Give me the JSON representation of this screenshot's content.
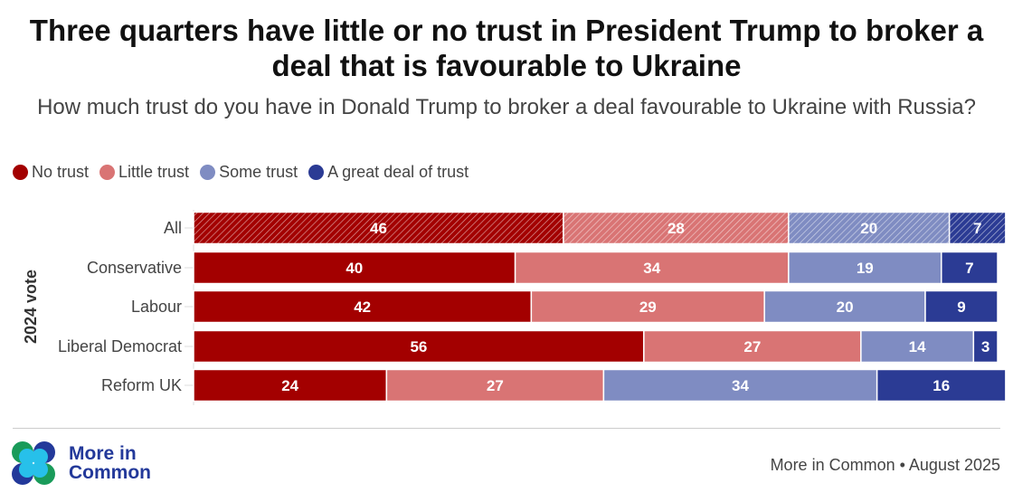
{
  "title": "Three quarters have little or no trust in President Trump to broker a deal that is favourable to Ukraine",
  "subtitle": "How much trust do you have in Donald Trump to broker a deal favourable to Ukraine with Russia?",
  "logo": {
    "line1": "More in",
    "line2": "Common"
  },
  "source": "More in Common • August 2025",
  "chart_data": {
    "type": "bar",
    "orientation": "horizontal-stacked",
    "ylabel": "2024 vote",
    "categories": [
      "All",
      "Conservative",
      "Labour",
      "Liberal Democrat",
      "Reform UK"
    ],
    "xlim": [
      0,
      100
    ],
    "grid": false,
    "legend_position": "top-left",
    "series": [
      {
        "name": "No trust",
        "color": "#a30000",
        "values": [
          46,
          40,
          42,
          56,
          24
        ]
      },
      {
        "name": "Little trust",
        "color": "#d97474",
        "values": [
          28,
          34,
          29,
          27,
          27
        ]
      },
      {
        "name": "Some trust",
        "color": "#7f8cc2",
        "values": [
          20,
          19,
          20,
          14,
          34
        ]
      },
      {
        "name": "A great deal of trust",
        "color": "#2b3b94",
        "values": [
          7,
          7,
          9,
          3,
          16
        ]
      }
    ],
    "hatched_categories": [
      "All"
    ]
  }
}
